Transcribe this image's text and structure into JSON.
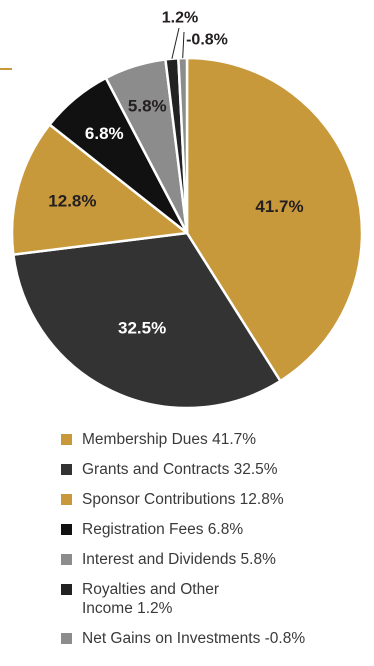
{
  "chart_data": {
    "type": "pie",
    "title": "",
    "slices": [
      {
        "label": "Membership Dues",
        "value": 41.7,
        "display": "41.7%",
        "color": "#c8993b",
        "text_color": "#231f20",
        "legend": "Membership Dues 41.7%"
      },
      {
        "label": "Grants and Contracts",
        "value": 32.5,
        "display": "32.5%",
        "color": "#333333",
        "text_color": "#ffffff",
        "legend": "Grants and Contracts 32.5%"
      },
      {
        "label": "Sponsor Contributions",
        "value": 12.8,
        "display": "12.8%",
        "color": "#c8993b",
        "text_color": "#231f20",
        "legend": "Sponsor Contributions 12.8%"
      },
      {
        "label": "Registration Fees",
        "value": 6.8,
        "display": "6.8%",
        "color": "#111111",
        "text_color": "#ffffff",
        "legend": "Registration Fees 6.8%"
      },
      {
        "label": "Interest and Dividends",
        "value": 5.8,
        "display": "5.8%",
        "color": "#8c8c8c",
        "text_color": "#231f20",
        "legend": "Interest and Dividends 5.8%"
      },
      {
        "label": "Royalties and Other Income",
        "value": 1.2,
        "display": "1.2%",
        "color": "#222222",
        "text_color": "#231f20",
        "legend": "Royalties and Other Income 1.2%"
      },
      {
        "label": "Net Gains on Investments",
        "value": -0.8,
        "display": "-0.8%",
        "color": "#8c8c8c",
        "text_color": "#231f20",
        "legend": "Net Gains on Investments -0.8%"
      }
    ],
    "legend_position": "bottom",
    "grid": false
  },
  "colors": {
    "accent_gold": "#c8993b",
    "divider": "#ffffff"
  }
}
